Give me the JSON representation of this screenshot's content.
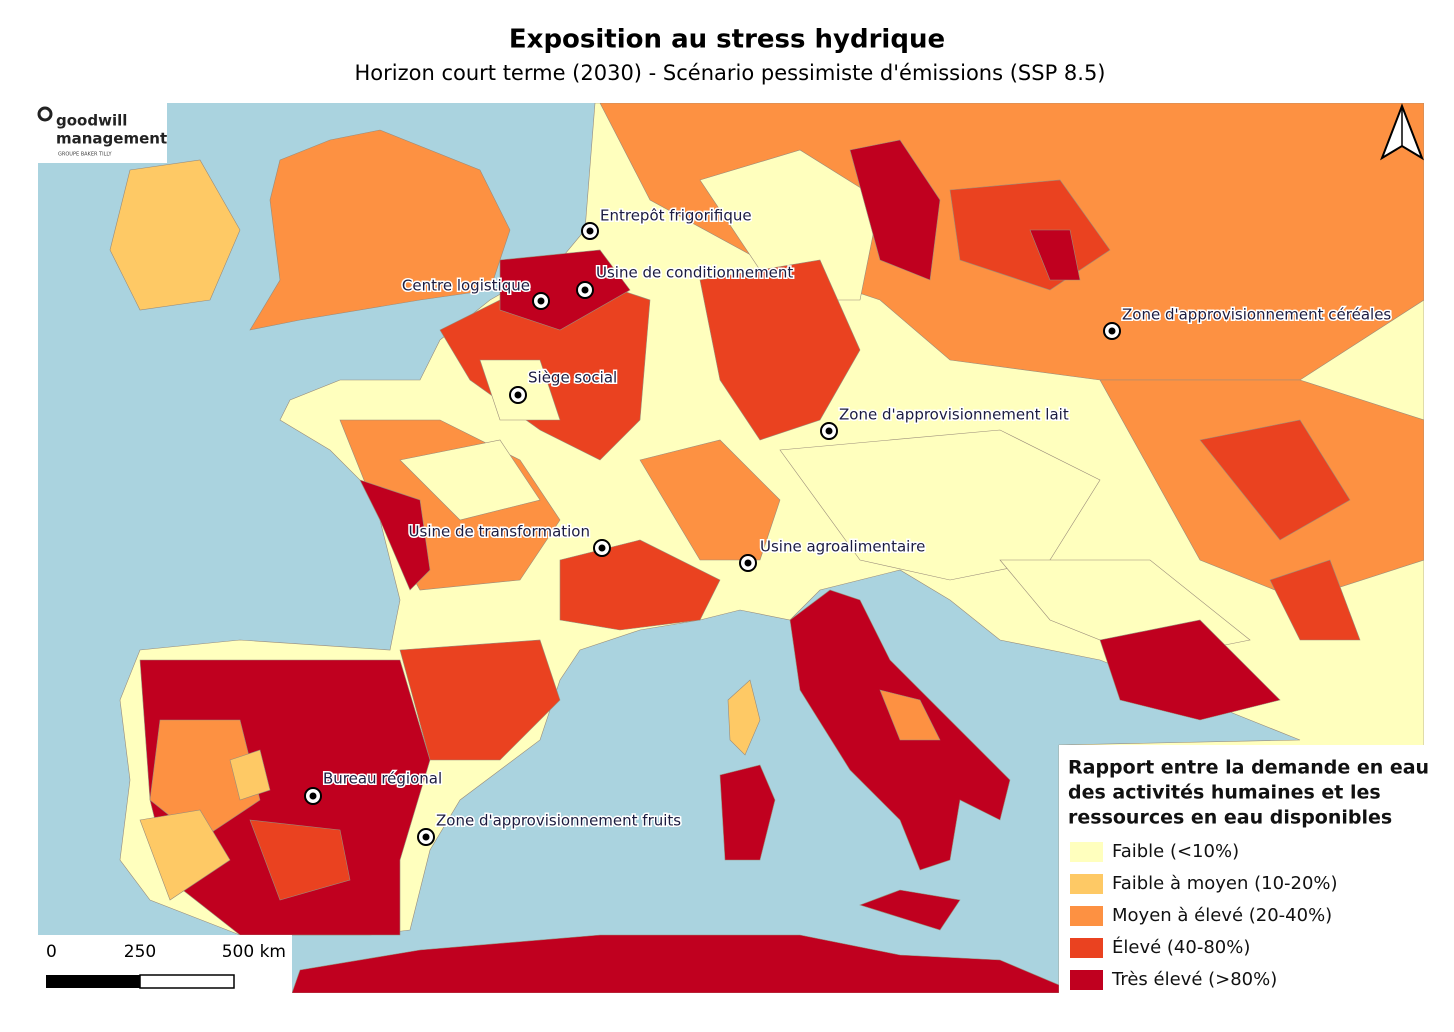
{
  "header": {
    "title": "Exposition au stress hydrique",
    "subtitle": "Horizon court terme (2030) - Scénario pessimiste d'émissions (SSP 8.5)"
  },
  "logo": {
    "name_line1": "goodwill",
    "name_line2": "management",
    "group": "GROUPE BAKER TILLY"
  },
  "sites": [
    {
      "label": "Entrepôt frigorifique"
    },
    {
      "label": "Usine de conditionnement"
    },
    {
      "label": "Centre logistique"
    },
    {
      "label": "Siège social"
    },
    {
      "label": "Zone d'approvisionnement céréales"
    },
    {
      "label": "Zone d'approvisionnement lait"
    },
    {
      "label": "Usine de transformation"
    },
    {
      "label": "Usine agroalimentaire"
    },
    {
      "label": "Bureau régional"
    },
    {
      "label": "Zone d'approvisionnement fruits"
    }
  ],
  "legend": {
    "title_lines": [
      "Rapport entre la demande en eau",
      "des activités humaines et les",
      "ressources en eau disponibles"
    ],
    "items": [
      {
        "label": "Faible (<10%)",
        "color": "#ffffbe"
      },
      {
        "label": "Faible à moyen (10-20%)",
        "color": "#fec965"
      },
      {
        "label": "Moyen à élevé (20-40%)",
        "color": "#fd9142"
      },
      {
        "label": "Élevé (40-80%)",
        "color": "#ea4220"
      },
      {
        "label": "Très élevé (>80%)",
        "color": "#c0001f"
      }
    ]
  },
  "scale_bar": {
    "labels": [
      "0",
      "250",
      "500 km"
    ]
  }
}
